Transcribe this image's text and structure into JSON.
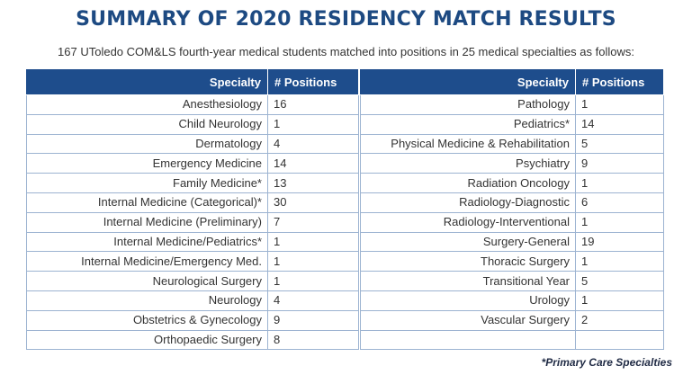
{
  "title": "SUMMARY OF 2020 RESIDENCY MATCH RESULTS",
  "subtitle": "167 UToledo COM&LS fourth-year medical students matched into positions in 25 medical specialties as follows:",
  "table_headers": {
    "specialty": "Specialty",
    "positions": "# Positions"
  },
  "left_rows": [
    {
      "specialty": "Anesthesiology",
      "positions": "16"
    },
    {
      "specialty": "Child Neurology",
      "positions": "1"
    },
    {
      "specialty": "Dermatology",
      "positions": "4"
    },
    {
      "specialty": "Emergency Medicine",
      "positions": "14"
    },
    {
      "specialty": "Family Medicine*",
      "positions": "13"
    },
    {
      "specialty": "Internal Medicine (Categorical)*",
      "positions": "30"
    },
    {
      "specialty": "Internal Medicine (Preliminary)",
      "positions": "7"
    },
    {
      "specialty": "Internal Medicine/Pediatrics*",
      "positions": "1"
    },
    {
      "specialty": "Internal Medicine/Emergency Med.",
      "positions": "1"
    },
    {
      "specialty": "Neurological Surgery",
      "positions": "1"
    },
    {
      "specialty": "Neurology",
      "positions": "4"
    },
    {
      "specialty": "Obstetrics & Gynecology",
      "positions": "9"
    },
    {
      "specialty": "Orthopaedic Surgery",
      "positions": "8"
    }
  ],
  "right_rows": [
    {
      "specialty": "Pathology",
      "positions": "1"
    },
    {
      "specialty": "Pediatrics*",
      "positions": "14"
    },
    {
      "specialty": "Physical Medicine & Rehabilitation",
      "positions": "5"
    },
    {
      "specialty": "Psychiatry",
      "positions": "9"
    },
    {
      "specialty": "Radiation Oncology",
      "positions": "1"
    },
    {
      "specialty": "Radiology-Diagnostic",
      "positions": "6"
    },
    {
      "specialty": "Radiology-Interventional",
      "positions": "1"
    },
    {
      "specialty": "Surgery-General",
      "positions": "19"
    },
    {
      "specialty": "Thoracic Surgery",
      "positions": "1"
    },
    {
      "specialty": "Transitional Year",
      "positions": "5"
    },
    {
      "specialty": "Urology",
      "positions": "1"
    },
    {
      "specialty": "Vascular Surgery",
      "positions": "2"
    },
    {
      "specialty": "",
      "positions": ""
    }
  ],
  "footnote": "*Primary Care Specialties"
}
